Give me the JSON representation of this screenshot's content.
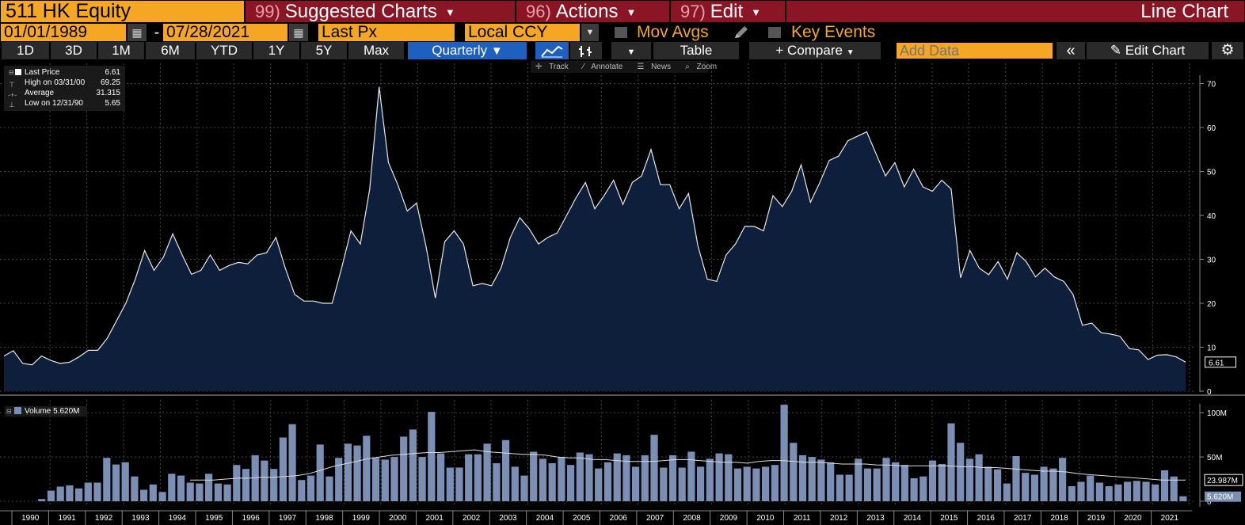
{
  "header": {
    "ticker": "511 HK Equity",
    "menus": [
      {
        "num": "99)",
        "label": "Suggested Charts"
      },
      {
        "num": "96)",
        "label": "Actions"
      },
      {
        "num": "97)",
        "label": "Edit"
      }
    ],
    "chart_type": "Line Chart"
  },
  "controls": {
    "start_date": "01/01/1989",
    "date_sep": "-",
    "end_date": "07/28/2021",
    "field": "Last Px",
    "currency": "Local CCY",
    "mov_avgs": "Mov Avgs",
    "key_events": "Key Events"
  },
  "toolbar": {
    "periods": [
      "1D",
      "3D",
      "1M",
      "6M",
      "YTD",
      "1Y",
      "5Y",
      "Max"
    ],
    "frequency": "Quarterly",
    "table_label": "Table",
    "compare_label": "+ Compare",
    "add_data_placeholder": "Add Data",
    "edit_chart_label": "Edit Chart",
    "chart_tools": [
      "Track",
      "Annotate",
      "News",
      "Zoom"
    ]
  },
  "legend": {
    "rows": [
      {
        "label": "Last Price",
        "value": "6.61"
      },
      {
        "label": "High on 03/31/00",
        "value": "69.25"
      },
      {
        "label": "Average",
        "value": "31.315"
      },
      {
        "label": "Low on 12/31/90",
        "value": "5.65"
      }
    ],
    "volume": "Volume 5.620M"
  },
  "colors": {
    "accent_orange": "#f5a623",
    "menu_red": "#8a1524",
    "active_blue": "#1f5fbf",
    "area_fill": "#0d1f3a",
    "volume_bar": "#7b8fb5"
  },
  "chart_data": [
    {
      "type": "area",
      "series": [
        {
          "name": "Last Price",
          "values": [
            8.0,
            9.2,
            6.3,
            6.0,
            8.0,
            7.0,
            6.3,
            6.6,
            7.8,
            9.3,
            9.3,
            12,
            16,
            20,
            25.5,
            32,
            27.5,
            30.5,
            35.8,
            31,
            26.6,
            27.5,
            31,
            27.5,
            28.6,
            29.3,
            29,
            31,
            31.5,
            35,
            28,
            22,
            20.5,
            20.5,
            20,
            20,
            28,
            36.5,
            33.5,
            46,
            69.25,
            52,
            47,
            41,
            42.8,
            33,
            21.2,
            34,
            36.5,
            33.5,
            24,
            24.5,
            24,
            28,
            35,
            39.5,
            37,
            33.5,
            35,
            36,
            40,
            44,
            47.5,
            41.5,
            44.5,
            48,
            42.5,
            47.5,
            49,
            55,
            47,
            47,
            41.5,
            45,
            33,
            25.5,
            25,
            31,
            33.5,
            37.5,
            37.5,
            36.5,
            44.5,
            42,
            45.5,
            51.5,
            43,
            47.5,
            52.5,
            53.5,
            57,
            58,
            59,
            54,
            49,
            52,
            46.5,
            50.5,
            46.5,
            45.5,
            48,
            46,
            25.8,
            32,
            28,
            26.5,
            29.5,
            25.5,
            31.5,
            29.5,
            26,
            28,
            26,
            25,
            22,
            15,
            15.5,
            13.3,
            13,
            12.5,
            9.7,
            9.4,
            7.2,
            8.2,
            8.3,
            7.8,
            6.61
          ]
        }
      ],
      "x_labels": [
        "1990",
        "1991",
        "1992",
        "1993",
        "1994",
        "1995",
        "1996",
        "1997",
        "1998",
        "1999",
        "2000",
        "2001",
        "2002",
        "2003",
        "2004",
        "2005",
        "2006",
        "2007",
        "2008",
        "2009",
        "2010",
        "2011",
        "2012",
        "2013",
        "2014",
        "2015",
        "2016",
        "2017",
        "2018",
        "2019",
        "2020",
        "2021"
      ],
      "y_ticks": [
        0,
        10,
        20,
        30,
        40,
        50,
        60,
        70
      ],
      "ylim": [
        0,
        71
      ],
      "last_value_label": "6.61",
      "grid": true
    },
    {
      "type": "bar",
      "series": [
        {
          "name": "Volume",
          "values": [
            0,
            0,
            0,
            2.5,
            12,
            16.5,
            18,
            14.5,
            21,
            21,
            49,
            41.5,
            44,
            28,
            13,
            19,
            10.5,
            31,
            29,
            21,
            20,
            31,
            20,
            19,
            41,
            36.5,
            52,
            46,
            36.5,
            72,
            87,
            24,
            29,
            64,
            28,
            49,
            65,
            63,
            74,
            49,
            47,
            50,
            73,
            81,
            50,
            101,
            54,
            38,
            38,
            53,
            53,
            65,
            43,
            69,
            39,
            29,
            56,
            48,
            43,
            50,
            41,
            55,
            53,
            37,
            44,
            54,
            52,
            39,
            52,
            75,
            38,
            52,
            38,
            56,
            39,
            48,
            54,
            53,
            37,
            39,
            37,
            39,
            41,
            109,
            66,
            52,
            50,
            47,
            44,
            30,
            30,
            48,
            37,
            37,
            49,
            44,
            41,
            26,
            28,
            46,
            42,
            88,
            66,
            48,
            53,
            39,
            36,
            20,
            51,
            32,
            30,
            39,
            37,
            49,
            17,
            22,
            29,
            21,
            17,
            19,
            22,
            23,
            22,
            19,
            35,
            28,
            5.62
          ]
        },
        {
          "name": "Volume avg",
          "values": [
            24,
            24,
            24,
            25,
            26,
            26,
            27,
            27,
            28,
            29,
            31,
            35,
            39,
            42,
            45,
            48,
            50,
            52,
            53,
            54,
            55,
            55,
            56,
            57,
            58,
            56,
            55,
            54,
            53,
            53,
            52,
            50,
            49,
            49,
            47,
            47,
            46,
            45,
            45,
            45,
            46,
            47,
            47,
            46,
            45,
            44,
            44,
            43,
            45,
            46,
            46,
            45,
            44,
            44,
            43,
            42,
            42,
            42,
            41,
            41,
            40,
            40,
            40,
            40,
            40,
            39,
            39,
            38,
            38,
            37,
            36,
            35,
            34,
            34,
            33,
            31,
            30,
            29,
            28,
            27,
            26,
            25,
            24,
            24,
            23.987
          ]
        }
      ],
      "y_ticks": [
        "0",
        "50M",
        "100M"
      ],
      "ylim": [
        0,
        110
      ],
      "unit": "M",
      "avg_label": "23.987M",
      "last_label": "5.620M"
    }
  ]
}
